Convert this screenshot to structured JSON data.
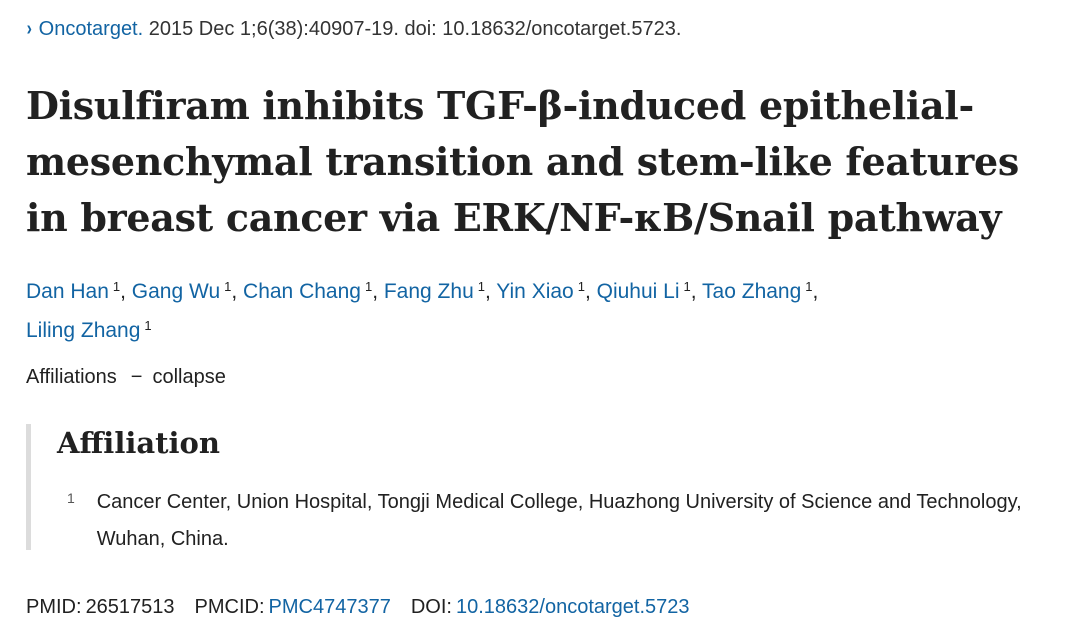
{
  "citation": {
    "chevron": "›",
    "journal": "Oncotarget.",
    "details": " 2015 Dec 1;6(38):40907-19. doi: 10.18632/oncotarget.5723."
  },
  "title": "Disulfiram inhibits TGF-β-induced epithelial-mesenchymal transition and stem-like features in breast cancer via ERK/NF-κB/Snail pathway",
  "authors": [
    {
      "name": "Dan Han",
      "sup": "1"
    },
    {
      "name": "Gang Wu",
      "sup": "1"
    },
    {
      "name": "Chan Chang",
      "sup": "1"
    },
    {
      "name": "Fang Zhu",
      "sup": "1"
    },
    {
      "name": "Yin Xiao",
      "sup": "1"
    },
    {
      "name": "Qiuhui Li",
      "sup": "1"
    },
    {
      "name": "Tao Zhang",
      "sup": "1"
    },
    {
      "name": "Liling Zhang",
      "sup": "1"
    }
  ],
  "affiliations_toggle": {
    "label": "Affiliations",
    "dash": "−",
    "action": "collapse"
  },
  "affiliation_section": {
    "heading": "Affiliation",
    "items": [
      {
        "num": "1",
        "text": "Cancer Center, Union Hospital, Tongji Medical College, Huazhong University of Science and Technology, Wuhan, China."
      }
    ]
  },
  "identifiers": {
    "pmid_label": "PMID:",
    "pmid": "26517513",
    "pmcid_label": "PMCID:",
    "pmcid": "PMC4747377",
    "doi_label": "DOI:",
    "doi": "10.18632/oncotarget.5723"
  }
}
